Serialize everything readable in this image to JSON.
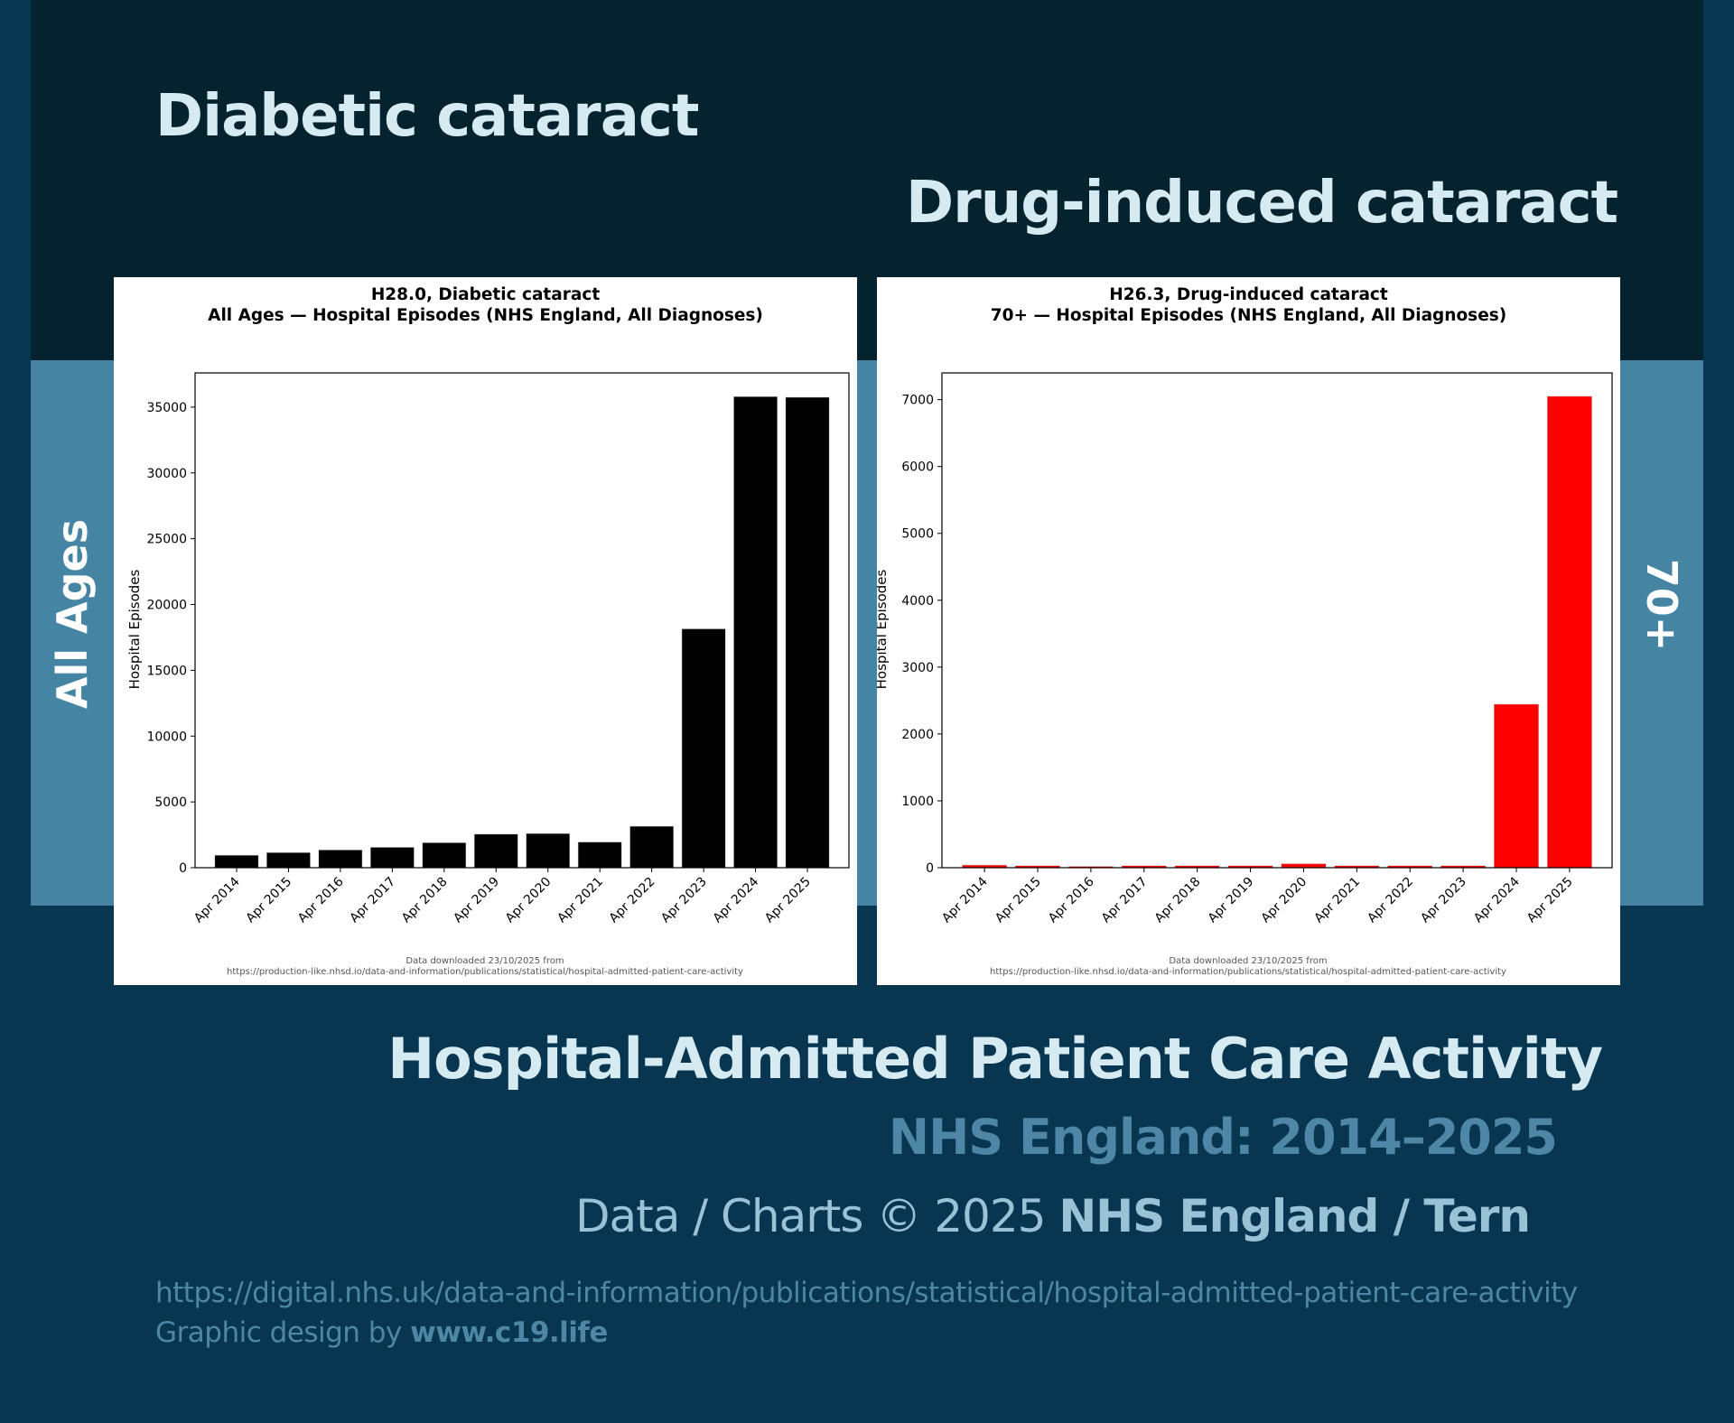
{
  "header": {
    "left_title": "Diabetic cataract",
    "right_title": "Drug-induced cataract"
  },
  "side_labels": {
    "left": "All Ages",
    "right": "70+"
  },
  "colors": {
    "left_bars": "#000000",
    "right_bars": "#ff0000",
    "title_text": "#d6eaf2",
    "accent_blue": "#4584a3"
  },
  "chart_data": [
    {
      "type": "bar",
      "title": "H28.0, Diabetic cataract",
      "subtitle": "All Ages — Hospital Episodes (NHS England, All Diagnoses)",
      "xlabel": "",
      "ylabel": "Hospital Episodes",
      "categories": [
        "Apr 2014",
        "Apr 2015",
        "Apr 2016",
        "Apr 2017",
        "Apr 2018",
        "Apr 2019",
        "Apr 2020",
        "Apr 2021",
        "Apr 2022",
        "Apr 2023",
        "Apr 2024",
        "Apr 2025"
      ],
      "values": [
        950,
        1150,
        1350,
        1550,
        1900,
        2550,
        2600,
        1950,
        3150,
        18150,
        35800,
        35750
      ],
      "yticks": [
        0,
        5000,
        10000,
        15000,
        20000,
        25000,
        30000,
        35000
      ],
      "ylim": [
        0,
        37600
      ],
      "bar_color": "#000000",
      "grid": false,
      "note_line1": "Data downloaded 23/10/2025 from",
      "note_line2": "https://production-like.nhsd.io/data-and-information/publications/statistical/hospital-admitted-patient-care-activity"
    },
    {
      "type": "bar",
      "title": "H26.3, Drug-induced cataract",
      "subtitle": "70+ — Hospital Episodes (NHS England, All Diagnoses)",
      "xlabel": "",
      "ylabel": "Hospital Episodes",
      "categories": [
        "Apr 2014",
        "Apr 2015",
        "Apr 2016",
        "Apr 2017",
        "Apr 2018",
        "Apr 2019",
        "Apr 2020",
        "Apr 2021",
        "Apr 2022",
        "Apr 2023",
        "Apr 2024",
        "Apr 2025"
      ],
      "values": [
        40,
        30,
        20,
        30,
        30,
        30,
        60,
        30,
        30,
        30,
        2445,
        7050
      ],
      "yticks": [
        0,
        1000,
        2000,
        3000,
        4000,
        5000,
        6000,
        7000
      ],
      "ylim": [
        0,
        7400
      ],
      "bar_color": "#ff0000",
      "grid": false,
      "note_line1": "Data downloaded 23/10/2025 from",
      "note_line2": "https://production-like.nhsd.io/data-and-information/publications/statistical/hospital-admitted-patient-care-activity"
    }
  ],
  "footer": {
    "title": "Hospital-Admitted Patient Care Activity",
    "subtitle": "NHS England: 2014–2025",
    "credit_prefix": "Data / Charts © 2025 ",
    "credit_bold": "NHS England / Tern",
    "url": "https://digital.nhs.uk/data-and-information/publications/statistical/hospital-admitted-patient-care-activity",
    "design_prefix": "Graphic design by ",
    "design_bold": "www.c19.life"
  }
}
